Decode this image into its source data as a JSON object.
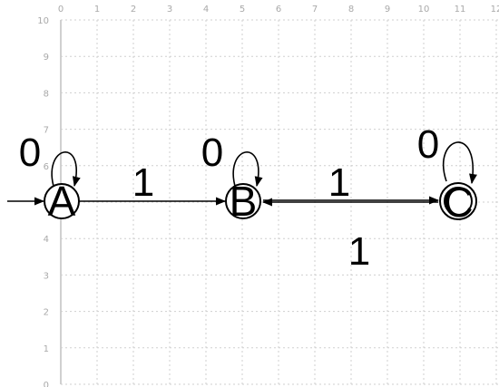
{
  "axes": {
    "x_ticks": [
      "0",
      "1",
      "2",
      "3",
      "4",
      "5",
      "6",
      "7",
      "8",
      "9",
      "10",
      "11",
      "12"
    ],
    "y_ticks": [
      "10",
      "9",
      "8",
      "7",
      "6",
      "5",
      "4",
      "3",
      "2",
      "1",
      "0"
    ],
    "grid": true
  },
  "states": [
    {
      "id": "A",
      "label": "A",
      "start": true,
      "accepting": false
    },
    {
      "id": "B",
      "label": "B",
      "start": false,
      "accepting": false
    },
    {
      "id": "C",
      "label": "C",
      "start": false,
      "accepting": true
    }
  ],
  "transitions": [
    {
      "from": "A",
      "to": "A",
      "label": "0"
    },
    {
      "from": "A",
      "to": "B",
      "label": "1"
    },
    {
      "from": "B",
      "to": "B",
      "label": "0"
    },
    {
      "from": "B",
      "to": "C",
      "label": "1"
    },
    {
      "from": "C",
      "to": "B",
      "label": "1"
    },
    {
      "from": "C",
      "to": "C",
      "label": "0"
    }
  ],
  "colors": {
    "grid": "#cfcfcf",
    "ticks": "#a9a9a9",
    "ink": "#000000"
  }
}
